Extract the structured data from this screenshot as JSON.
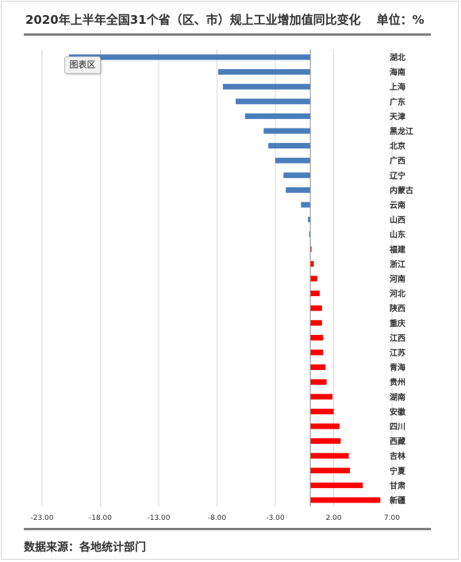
{
  "title": {
    "main": "2020年上半年全国31个省（区、市）规上工业增加值同比变化",
    "unit": "单位：%"
  },
  "footer": "数据来源：各地统计部门",
  "tooltip": "图表区",
  "chart_data": {
    "type": "bar",
    "orientation": "horizontal",
    "categories": [
      "湖北",
      "海南",
      "上海",
      "广东",
      "天津",
      "黑龙江",
      "北京",
      "广西",
      "辽宁",
      "内蒙古",
      "云南",
      "山西",
      "山东",
      "福建",
      "浙江",
      "河南",
      "河北",
      "陕西",
      "重庆",
      "江西",
      "江苏",
      "青海",
      "贵州",
      "湖南",
      "安徽",
      "四川",
      "西藏",
      "吉林",
      "宁夏",
      "甘肃",
      "新疆"
    ],
    "values": [
      -20.7,
      -7.9,
      -7.5,
      -6.4,
      -5.6,
      -4.0,
      -3.6,
      -3.0,
      -2.3,
      -2.1,
      -0.8,
      -0.2,
      -0.1,
      0.1,
      0.3,
      0.6,
      0.8,
      1.0,
      1.0,
      1.1,
      1.1,
      1.3,
      1.4,
      1.9,
      2.0,
      2.5,
      2.6,
      3.3,
      3.4,
      4.5,
      6.0
    ],
    "xlim": [
      -23,
      7
    ],
    "xticks": [
      -23,
      -18,
      -13,
      -8,
      -3,
      2,
      7
    ],
    "xtick_labels": [
      "-23.00",
      "-18.00",
      "-13.00",
      "-8.00",
      "-3.00",
      "2.00",
      "7.00"
    ],
    "gridlines": true,
    "colors": {
      "negative": "#4a7ebb",
      "positive": "#ff0000",
      "grid": "#d9d9d9",
      "axis": "#8c8c8c"
    }
  }
}
